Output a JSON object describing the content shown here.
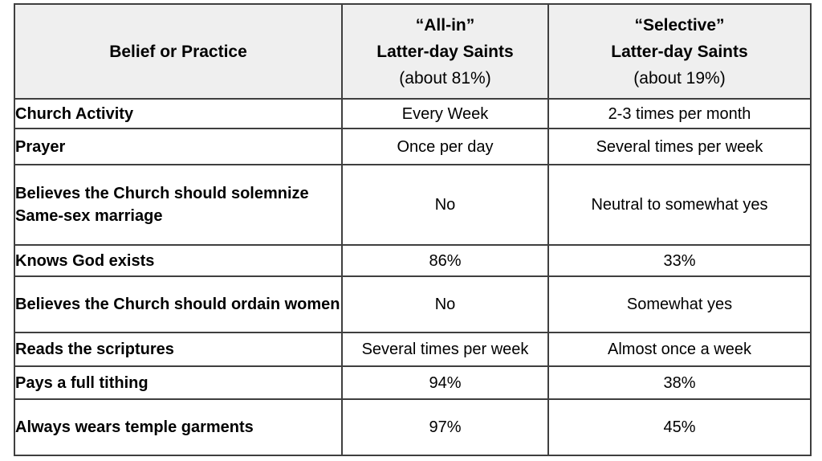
{
  "colors": {
    "background": "#ffffff",
    "header_background": "#efefef",
    "border": "#3f3f3f",
    "text": "#000000"
  },
  "chart_data": {
    "type": "table",
    "title": "",
    "columns": [
      "Belief or Practice",
      "“All-in” Latter-day Saints (about 81%)",
      "“Selective” Latter-day Saints (about 19%)"
    ],
    "header": {
      "col1": "Belief or Practice",
      "col2": {
        "line1": "“All-in”",
        "line2": "Latter-day Saints",
        "line3": "(about 81%)"
      },
      "col3": {
        "line1": "“Selective”",
        "line2": "Latter-day Saints",
        "line3": "(about 19%)"
      }
    },
    "rows": [
      {
        "label": "Church Activity",
        "all_in": "Every Week",
        "selective": "2-3 times per month"
      },
      {
        "label": "Prayer",
        "all_in": "Once per day",
        "selective": "Several times per week"
      },
      {
        "label": "Believes the Church should solemnize Same-sex marriage",
        "all_in": "No",
        "selective": "Neutral to somewhat yes"
      },
      {
        "label": "Knows God exists",
        "all_in": "86%",
        "selective": "33%"
      },
      {
        "label": "Believes the Church should ordain women",
        "all_in": "No",
        "selective": "Somewhat yes"
      },
      {
        "label": "Reads the scriptures",
        "all_in": "Several times per week",
        "selective": "Almost once a week"
      },
      {
        "label": "Pays a full tithing",
        "all_in": "94%",
        "selective": "38%"
      },
      {
        "label": "Always wears temple garments",
        "all_in": "97%",
        "selective": "45%"
      }
    ]
  }
}
